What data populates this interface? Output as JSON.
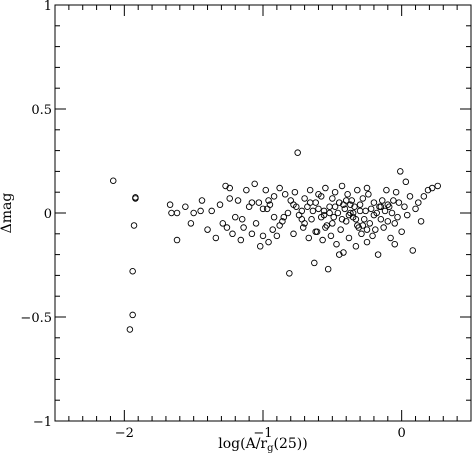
{
  "chart_data": {
    "type": "scatter",
    "title": "",
    "xlabel": "log(A/r_g(25))",
    "ylabel": "Δmag",
    "xlim": [
      -2.5,
      0.5
    ],
    "ylim": [
      -1,
      1
    ],
    "xticks": [
      -2,
      -1,
      0
    ],
    "xtick_labels": [
      "−2",
      "−1",
      "0"
    ],
    "yticks": [
      -1,
      -0.5,
      0,
      0.5,
      1
    ],
    "ytick_labels": [
      "−1",
      "−0.5",
      "0",
      "0.5",
      "1"
    ],
    "grid": false,
    "marker": "open-circle",
    "points": [
      [
        -2.08,
        0.155
      ],
      [
        -1.92,
        0.07
      ],
      [
        -1.92,
        0.075
      ],
      [
        -1.93,
        -0.06
      ],
      [
        -1.94,
        -0.28
      ],
      [
        -1.94,
        -0.49
      ],
      [
        -1.96,
        -0.56
      ],
      [
        -1.67,
        0.04
      ],
      [
        -1.62,
        0.0
      ],
      [
        -1.66,
        0.0
      ],
      [
        -1.62,
        -0.13
      ],
      [
        -1.56,
        0.03
      ],
      [
        -1.52,
        -0.05
      ],
      [
        -1.5,
        0.0
      ],
      [
        -1.45,
        0.01
      ],
      [
        -1.44,
        0.06
      ],
      [
        -1.4,
        -0.08
      ],
      [
        -1.37,
        0.01
      ],
      [
        -1.34,
        -0.12
      ],
      [
        -1.31,
        0.04
      ],
      [
        -1.29,
        -0.05
      ],
      [
        -1.27,
        0.13
      ],
      [
        -1.24,
        0.12
      ],
      [
        -1.24,
        0.07
      ],
      [
        -1.22,
        -0.1
      ],
      [
        -1.2,
        -0.02
      ],
      [
        -1.18,
        0.06
      ],
      [
        -1.16,
        -0.13
      ],
      [
        -1.14,
        -0.07
      ],
      [
        -1.12,
        0.11
      ],
      [
        -1.1,
        0.03
      ],
      [
        -1.08,
        -0.1
      ],
      [
        -1.06,
        0.14
      ],
      [
        -1.05,
        -0.05
      ],
      [
        -1.03,
        0.05
      ],
      [
        -1.02,
        -0.16
      ],
      [
        -1.0,
        -0.11
      ],
      [
        -0.98,
        0.11
      ],
      [
        -0.97,
        0.02
      ],
      [
        -0.96,
        -0.14
      ],
      [
        -0.95,
        0.04
      ],
      [
        -0.93,
        -0.08
      ],
      [
        -0.92,
        0.08
      ],
      [
        -0.9,
        -0.11
      ],
      [
        -0.88,
        0.12
      ],
      [
        -0.86,
        -0.04
      ],
      [
        -0.85,
        -0.02
      ],
      [
        -0.82,
        0.0
      ],
      [
        -0.81,
        -0.29
      ],
      [
        -0.8,
        0.06
      ],
      [
        -0.78,
        -0.1
      ],
      [
        -0.77,
        0.1
      ],
      [
        -0.76,
        0.03
      ],
      [
        -0.75,
        0.29
      ],
      [
        -0.74,
        -0.01
      ],
      [
        -0.72,
        0.01
      ],
      [
        -0.71,
        -0.07
      ],
      [
        -0.7,
        0.07
      ],
      [
        -0.68,
        0.03
      ],
      [
        -0.67,
        -0.12
      ],
      [
        -0.66,
        0.11
      ],
      [
        -0.65,
        -0.03
      ],
      [
        -0.63,
        -0.24
      ],
      [
        -0.62,
        0.05
      ],
      [
        -0.61,
        -0.09
      ],
      [
        -0.6,
        0.02
      ],
      [
        -0.58,
        0.08
      ],
      [
        -0.57,
        -0.13
      ],
      [
        -0.56,
        -0.01
      ],
      [
        -0.55,
        0.12
      ],
      [
        -0.54,
        -0.06
      ],
      [
        -0.53,
        -0.27
      ],
      [
        -0.52,
        0.03
      ],
      [
        -0.51,
        -0.11
      ],
      [
        -0.5,
        0.07
      ],
      [
        -0.49,
        -0.02
      ],
      [
        -0.48,
        0.1
      ],
      [
        -0.47,
        -0.15
      ],
      [
        -0.46,
        0.0
      ],
      [
        -0.45,
        0.05
      ],
      [
        -0.44,
        -0.08
      ],
      [
        -0.43,
        0.13
      ],
      [
        -0.42,
        -0.19
      ],
      [
        -0.41,
        0.02
      ],
      [
        -0.4,
        -0.04
      ],
      [
        -0.39,
        0.09
      ],
      [
        -0.38,
        -0.12
      ],
      [
        -0.37,
        0.0
      ],
      [
        -0.36,
        0.06
      ],
      [
        -0.35,
        -0.02
      ],
      [
        -0.34,
        0.03
      ],
      [
        -0.33,
        -0.16
      ],
      [
        -0.32,
        0.11
      ],
      [
        -0.31,
        -0.07
      ],
      [
        -0.3,
        0.04
      ],
      [
        -0.29,
        -0.1
      ],
      [
        -0.28,
        0.07
      ],
      [
        -0.27,
        -0.03
      ],
      [
        -0.26,
        0.01
      ],
      [
        -0.25,
        -0.14
      ],
      [
        -0.24,
        0.09
      ],
      [
        -0.23,
        -0.05
      ],
      [
        -0.22,
        0.02
      ],
      [
        -0.21,
        -0.11
      ],
      [
        -0.2,
        0.05
      ],
      [
        -0.19,
        -0.08
      ],
      [
        -0.18,
        0.0
      ],
      [
        -0.17,
        -0.2
      ],
      [
        -0.16,
        0.03
      ],
      [
        -0.15,
        -0.03
      ],
      [
        -0.14,
        0.06
      ],
      [
        -0.13,
        -0.07
      ],
      [
        -0.12,
        0.01
      ],
      [
        -0.11,
        0.11
      ],
      [
        -0.1,
        -0.04
      ],
      [
        -0.09,
        0.03
      ],
      [
        -0.08,
        -0.12
      ],
      [
        -0.07,
        0.0
      ],
      [
        -0.06,
        0.06
      ],
      [
        -0.05,
        -0.05
      ],
      [
        -0.04,
        0.1
      ],
      [
        -0.03,
        -0.02
      ],
      [
        -0.02,
        0.05
      ],
      [
        -0.01,
        0.2
      ],
      [
        0.0,
        -0.09
      ],
      [
        0.02,
        0.03
      ],
      [
        0.04,
        -0.01
      ],
      [
        0.06,
        0.08
      ],
      [
        0.08,
        -0.18
      ],
      [
        0.1,
        0.02
      ],
      [
        0.12,
        0.05
      ],
      [
        0.14,
        -0.04
      ],
      [
        0.16,
        0.08
      ],
      [
        0.19,
        0.11
      ],
      [
        0.22,
        0.12
      ],
      [
        0.26,
        0.13
      ],
      [
        0.03,
        0.15
      ],
      [
        -0.05,
        -0.15
      ],
      [
        -0.25,
        0.12
      ],
      [
        -0.45,
        -0.2
      ],
      [
        -0.62,
        -0.09
      ],
      [
        -0.7,
        -0.05
      ],
      [
        -0.78,
        0.04
      ],
      [
        -0.88,
        -0.06
      ],
      [
        -1.0,
        0.02
      ],
      [
        -0.56,
        0.01
      ],
      [
        -0.5,
        -0.05
      ],
      [
        -0.42,
        0.04
      ],
      [
        -0.38,
        -0.01
      ],
      [
        -0.35,
        0.0
      ],
      [
        -0.33,
        -0.03
      ],
      [
        -0.3,
        0.01
      ],
      [
        -0.28,
        -0.06
      ],
      [
        -0.4,
        0.06
      ],
      [
        -0.48,
        0.03
      ],
      [
        -0.55,
        -0.07
      ],
      [
        -0.6,
        0.09
      ],
      [
        -0.66,
        0.05
      ],
      [
        -0.72,
        -0.03
      ],
      [
        -0.84,
        0.09
      ],
      [
        -0.92,
        -0.02
      ],
      [
        -0.96,
        0.06
      ],
      [
        -1.08,
        0.05
      ],
      [
        -1.15,
        -0.03
      ],
      [
        -1.26,
        -0.07
      ],
      [
        -0.2,
        -0.01
      ],
      [
        -0.15,
        0.03
      ],
      [
        -0.1,
        0.04
      ],
      [
        -0.25,
        -0.08
      ],
      [
        -0.32,
        -0.06
      ],
      [
        -0.37,
        0.04
      ],
      [
        -0.43,
        -0.03
      ],
      [
        -0.52,
        0.0
      ],
      [
        -0.58,
        -0.02
      ],
      [
        -0.64,
        0.01
      ]
    ]
  }
}
